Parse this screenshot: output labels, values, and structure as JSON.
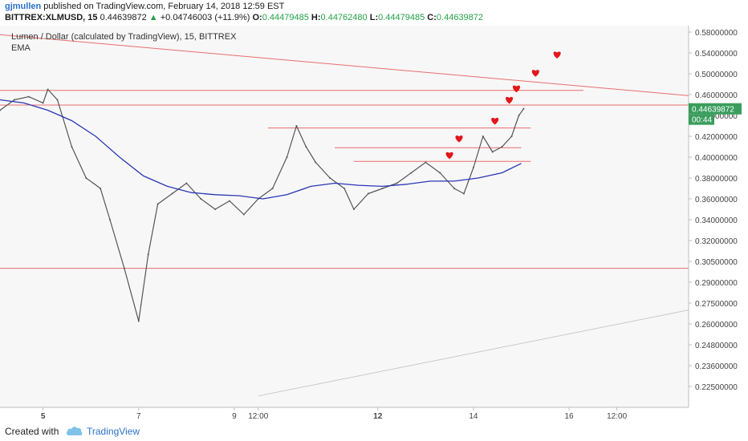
{
  "header": {
    "author": "gjmullen",
    "published_text": "published on TradingView.com, February 14, 2018 12:59 EST",
    "symbol": "BITTREX:XLMUSD, 15",
    "last": "0.44639872",
    "change": "+0.04746003 (+11.9%)",
    "o_label": "O:",
    "o_value": "0.44479485",
    "h_label": "H:",
    "h_value": "0.44762480",
    "l_label": "L:",
    "l_value": "0.44479485",
    "c_label": "C:",
    "c_value": "0.44639872"
  },
  "footer": {
    "created_with": "Created with",
    "brand": "TradingView"
  },
  "chart_data": {
    "type": "line",
    "title": "Lumen / Dollar (calculated by TradingView), 15, BITTREX",
    "indicator": "EMA",
    "price_tag": "0.44639872",
    "countdown": "00:44",
    "y_ticks": [
      {
        "label": "0.58000000",
        "value": 0.58
      },
      {
        "label": "0.54000000",
        "value": 0.54
      },
      {
        "label": "0.50000000",
        "value": 0.5
      },
      {
        "label": "0.46000000",
        "value": 0.46
      },
      {
        "label": "0.44000000",
        "value": 0.44
      },
      {
        "label": "0.42000000",
        "value": 0.42
      },
      {
        "label": "0.40000000",
        "value": 0.4
      },
      {
        "label": "0.38000000",
        "value": 0.38
      },
      {
        "label": "0.36000000",
        "value": 0.36
      },
      {
        "label": "0.34000000",
        "value": 0.34
      },
      {
        "label": "0.32000000",
        "value": 0.32
      },
      {
        "label": "0.30500000",
        "value": 0.305
      },
      {
        "label": "0.29000000",
        "value": 0.29
      },
      {
        "label": "0.27500000",
        "value": 0.275
      },
      {
        "label": "0.26000000",
        "value": 0.26
      },
      {
        "label": "0.24800000",
        "value": 0.248
      },
      {
        "label": "0.23600000",
        "value": 0.236
      },
      {
        "label": "0.22500000",
        "value": 0.225
      }
    ],
    "x_ticks": [
      {
        "label": "5",
        "t": 0.9
      },
      {
        "label": "7",
        "t": 2.9
      },
      {
        "label": "9",
        "t": 4.9
      },
      {
        "label": "12:00",
        "t": 5.4
      },
      {
        "label": "12",
        "t": 7.9
      },
      {
        "label": "14",
        "t": 9.9
      },
      {
        "label": "16",
        "t": 11.9
      },
      {
        "label": "12:00",
        "t": 12.9
      }
    ],
    "x_range": [
      0,
      14.4
    ],
    "price_series": [
      {
        "t": 0.0,
        "v": 0.445
      },
      {
        "t": 0.3,
        "v": 0.455
      },
      {
        "t": 0.6,
        "v": 0.458
      },
      {
        "t": 0.9,
        "v": 0.452
      },
      {
        "t": 1.0,
        "v": 0.47
      },
      {
        "t": 1.2,
        "v": 0.455
      },
      {
        "t": 1.5,
        "v": 0.41
      },
      {
        "t": 1.8,
        "v": 0.38
      },
      {
        "t": 2.1,
        "v": 0.37
      },
      {
        "t": 2.3,
        "v": 0.34
      },
      {
        "t": 2.6,
        "v": 0.3
      },
      {
        "t": 2.9,
        "v": 0.262
      },
      {
        "t": 3.1,
        "v": 0.31
      },
      {
        "t": 3.3,
        "v": 0.355
      },
      {
        "t": 3.6,
        "v": 0.365
      },
      {
        "t": 3.9,
        "v": 0.375
      },
      {
        "t": 4.2,
        "v": 0.36
      },
      {
        "t": 4.5,
        "v": 0.35
      },
      {
        "t": 4.8,
        "v": 0.358
      },
      {
        "t": 5.1,
        "v": 0.345
      },
      {
        "t": 5.4,
        "v": 0.36
      },
      {
        "t": 5.7,
        "v": 0.37
      },
      {
        "t": 6.0,
        "v": 0.4
      },
      {
        "t": 6.2,
        "v": 0.43
      },
      {
        "t": 6.4,
        "v": 0.41
      },
      {
        "t": 6.6,
        "v": 0.395
      },
      {
        "t": 6.9,
        "v": 0.38
      },
      {
        "t": 7.2,
        "v": 0.37
      },
      {
        "t": 7.4,
        "v": 0.35
      },
      {
        "t": 7.7,
        "v": 0.365
      },
      {
        "t": 8.0,
        "v": 0.37
      },
      {
        "t": 8.3,
        "v": 0.375
      },
      {
        "t": 8.6,
        "v": 0.385
      },
      {
        "t": 8.9,
        "v": 0.395
      },
      {
        "t": 9.2,
        "v": 0.385
      },
      {
        "t": 9.5,
        "v": 0.37
      },
      {
        "t": 9.7,
        "v": 0.365
      },
      {
        "t": 9.9,
        "v": 0.39
      },
      {
        "t": 10.1,
        "v": 0.42
      },
      {
        "t": 10.3,
        "v": 0.405
      },
      {
        "t": 10.5,
        "v": 0.41
      },
      {
        "t": 10.7,
        "v": 0.42
      },
      {
        "t": 10.85,
        "v": 0.44
      },
      {
        "t": 10.95,
        "v": 0.4464
      }
    ],
    "ema_series": [
      {
        "t": 0.0,
        "v": 0.455
      },
      {
        "t": 0.5,
        "v": 0.452
      },
      {
        "t": 1.0,
        "v": 0.445
      },
      {
        "t": 1.5,
        "v": 0.435
      },
      {
        "t": 2.0,
        "v": 0.42
      },
      {
        "t": 2.5,
        "v": 0.4
      },
      {
        "t": 3.0,
        "v": 0.382
      },
      {
        "t": 3.5,
        "v": 0.372
      },
      {
        "t": 4.0,
        "v": 0.366
      },
      {
        "t": 4.5,
        "v": 0.364
      },
      {
        "t": 5.0,
        "v": 0.363
      },
      {
        "t": 5.5,
        "v": 0.36
      },
      {
        "t": 6.0,
        "v": 0.364
      },
      {
        "t": 6.5,
        "v": 0.372
      },
      {
        "t": 7.0,
        "v": 0.375
      },
      {
        "t": 7.5,
        "v": 0.373
      },
      {
        "t": 8.0,
        "v": 0.372
      },
      {
        "t": 8.5,
        "v": 0.374
      },
      {
        "t": 9.0,
        "v": 0.377
      },
      {
        "t": 9.5,
        "v": 0.377
      },
      {
        "t": 10.0,
        "v": 0.38
      },
      {
        "t": 10.5,
        "v": 0.385
      },
      {
        "t": 10.9,
        "v": 0.394
      }
    ],
    "trendlines": [
      {
        "name": "descending-resistance",
        "from": {
          "t": 0.0,
          "v": 0.575
        },
        "to": {
          "t": 14.4,
          "v": 0.459
        }
      },
      {
        "name": "ascending-support",
        "from": {
          "t": 5.4,
          "v": 0.22
        },
        "to": {
          "t": 14.4,
          "v": 0.27
        }
      }
    ],
    "horizontal_lines": [
      {
        "from_t": 0.0,
        "to_t": 12.2,
        "v": 0.468
      },
      {
        "from_t": 0.0,
        "to_t": 14.4,
        "v": 0.45
      },
      {
        "from_t": 5.6,
        "to_t": 11.1,
        "v": 0.428
      },
      {
        "from_t": 7.0,
        "to_t": 10.9,
        "v": 0.409
      },
      {
        "from_t": 7.4,
        "to_t": 11.1,
        "v": 0.396
      },
      {
        "from_t": 0.0,
        "to_t": 14.4,
        "v": 0.3
      }
    ],
    "hearts": [
      {
        "t": 9.4,
        "v": 0.402
      },
      {
        "t": 9.6,
        "v": 0.418
      },
      {
        "t": 10.35,
        "v": 0.435
      },
      {
        "t": 10.65,
        "v": 0.455
      },
      {
        "t": 10.8,
        "v": 0.472
      },
      {
        "t": 11.2,
        "v": 0.502
      },
      {
        "t": 11.65,
        "v": 0.537
      }
    ],
    "colors": {
      "price": "#555555",
      "ema": "#2a37b5",
      "levels": "#e96d6d",
      "support": "#c9c9c9",
      "tag": "#3a9d5d",
      "heart": "#e3161b",
      "plot_bg": "#f7f7f7"
    }
  }
}
